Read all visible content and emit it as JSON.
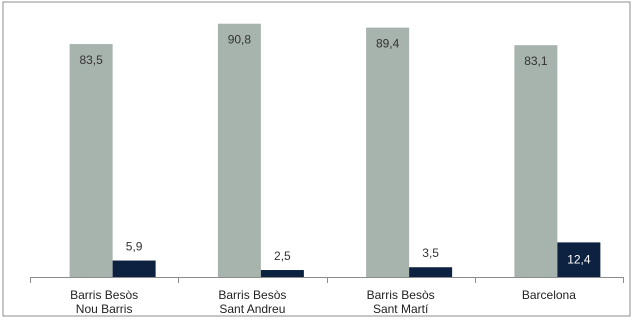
{
  "chart_data": {
    "type": "bar",
    "categories": [
      [
        "Barris Besòs",
        "Nou Barris"
      ],
      [
        "Barris Besòs",
        "Sant Andreu"
      ],
      [
        "Barris Besòs",
        "Sant Martí"
      ],
      [
        "Barcelona"
      ]
    ],
    "series": [
      {
        "values": [
          83.5,
          90.8,
          89.4,
          83.1
        ],
        "labels": [
          "83,5",
          "90,8",
          "89,4",
          "83,1"
        ],
        "color": "#a7b3ad"
      },
      {
        "values": [
          5.9,
          2.5,
          3.5,
          12.4
        ],
        "labels": [
          "5,9",
          "2,5",
          "3,5",
          "12,4"
        ],
        "color": "#0d2240"
      }
    ],
    "ylim": [
      0,
      95
    ],
    "grid": false,
    "legend": "none",
    "border_color": "#8c8c8c",
    "axis_color": "#8c8c8c"
  }
}
